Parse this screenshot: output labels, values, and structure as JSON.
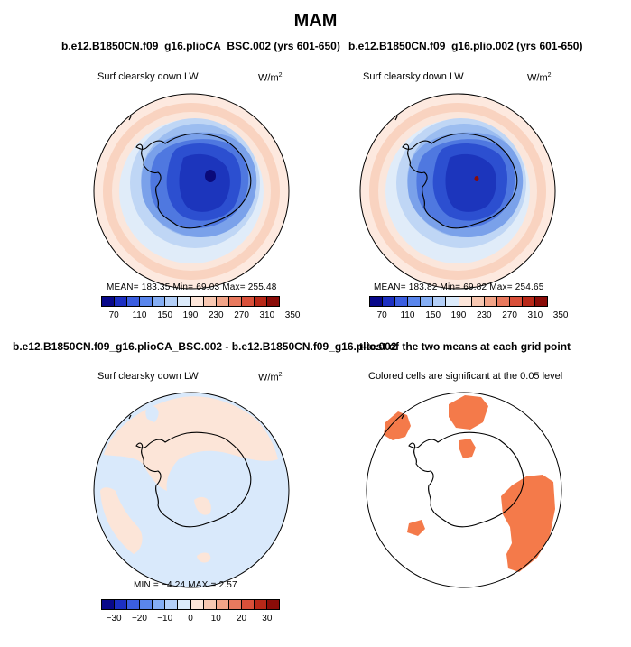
{
  "season": "MAM",
  "panels": {
    "top_left": {
      "title": "b.e12.B1850CN.f09_g16.plioCA_BSC.002 (yrs 601-650)",
      "variable": "Surf clearsky down LW",
      "units_base": "W/m",
      "units_exp": "2",
      "stats": "MEAN=  183.35    Min=    69.03    Max=  255.48"
    },
    "top_right": {
      "title": "b.e12.B1850CN.f09_g16.plio.002 (yrs 601-650)",
      "variable": "Surf clearsky down LW",
      "units_base": "W/m",
      "units_exp": "2",
      "stats": "MEAN=  183.82    Min=    69.82    Max=  254.65"
    },
    "bottom_left": {
      "title": "b.e12.B1850CN.f09_g16.plioCA_BSC.002 - b.e12.B1850CN.f09_g16.plio.002",
      "variable": "Surf clearsky down LW",
      "units_base": "W/m",
      "units_exp": "2",
      "stats": "MIN =   −4.24   MAX =    2.57"
    },
    "bottom_right": {
      "title": "t-test of the two means at each grid point",
      "variable": "Colored cells are significant at the 0.05 level"
    }
  },
  "colorbar_abs": {
    "colors": [
      "#08088a",
      "#1c2fc2",
      "#3b5ee0",
      "#5a86ec",
      "#85aef4",
      "#b3cff8",
      "#dcebfb",
      "#fde6da",
      "#f8c8b2",
      "#f2a488",
      "#e8795e",
      "#d9503a",
      "#b82818",
      "#8a0c08"
    ],
    "ticks": [
      "70",
      "110",
      "150",
      "190",
      "230",
      "270",
      "310",
      "350"
    ]
  },
  "colorbar_diff": {
    "colors": [
      "#08088a",
      "#1c2fc2",
      "#3b5ee0",
      "#5a86ec",
      "#85aef4",
      "#b3cff8",
      "#dcebfb",
      "#fde6da",
      "#f8c8b2",
      "#f2a488",
      "#e8795e",
      "#d9503a",
      "#b82818",
      "#8a0c08"
    ],
    "ticks": [
      "−30",
      "−20",
      "−10",
      "0",
      "10",
      "20",
      "30"
    ]
  },
  "colors": {
    "ocean_ring_warm": "#f6c8b3",
    "ocean_ring_light": "#fbe3d8",
    "diff_negative": "#d9e9fb",
    "diff_positive": "#fce5d8",
    "significant": "#f47a4a"
  }
}
